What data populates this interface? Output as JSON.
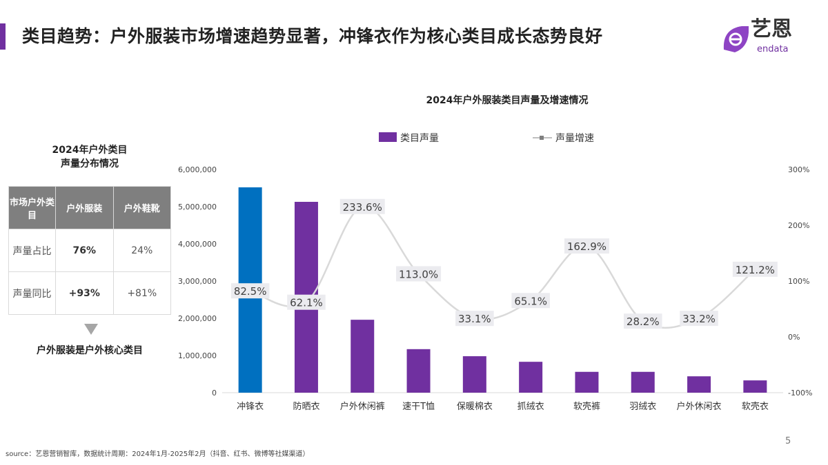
{
  "header": {
    "title": "类目趋势：户外服装市场增速趋势显著，冲锋衣作为核心类目成长态势良好",
    "logo_text": "艺恩",
    "logo_sub": "endata"
  },
  "side": {
    "title_line1": "2024年户外类目",
    "title_line2": "声量分布情况",
    "table": {
      "headers": [
        "市场户外类目",
        "户外服装",
        "户外鞋靴"
      ],
      "rows": [
        {
          "label": "声量占比",
          "values": [
            "76%",
            "24%"
          ]
        },
        {
          "label": "声量同比",
          "values": [
            "+93%",
            "+81%"
          ]
        }
      ]
    },
    "conclusion": "户外服装是户外核心类目"
  },
  "colors": {
    "accent": "#7030a0",
    "highlight": "#0070c0",
    "line": "#d9d9d9"
  },
  "chart_data": {
    "type": "bar+line",
    "title": "2024年户外服装类目声量及增速情况",
    "categories": [
      "冲锋衣",
      "防晒衣",
      "户外休闲裤",
      "速干T恤",
      "保暖棉衣",
      "抓绒衣",
      "软壳裤",
      "羽绒衣",
      "户外休闲衣",
      "软壳衣"
    ],
    "series": [
      {
        "name": "类目声量",
        "type": "bar",
        "axis": "left",
        "values": [
          5520000,
          5130000,
          1960000,
          1170000,
          980000,
          830000,
          560000,
          560000,
          440000,
          330000
        ]
      },
      {
        "name": "声量增速",
        "type": "line",
        "axis": "right",
        "values": [
          82.5,
          62.1,
          233.6,
          113.0,
          33.1,
          65.1,
          162.9,
          28.2,
          33.2,
          121.2
        ],
        "labels": [
          "82.5%",
          "62.1%",
          "233.6%",
          "113.0%",
          "33.1%",
          "65.1%",
          "162.9%",
          "28.2%",
          "33.2%",
          "121.2%"
        ]
      }
    ],
    "left_axis": {
      "ylim": [
        0,
        6000000
      ],
      "ticks": [
        "0",
        "1,000,000",
        "2,000,000",
        "3,000,000",
        "4,000,000",
        "5,000,000",
        "6,000,000"
      ]
    },
    "right_axis": {
      "ylim": [
        -100,
        300
      ],
      "ticks": [
        "-100%",
        "0%",
        "100%",
        "200%",
        "300%"
      ]
    },
    "legend": "top",
    "grid": false
  },
  "footer": {
    "source": "source：艺恩营销智库，数据统计周期：2024年1月-2025年2月（抖音、红书、微博等社媒渠道）",
    "page": "5"
  }
}
